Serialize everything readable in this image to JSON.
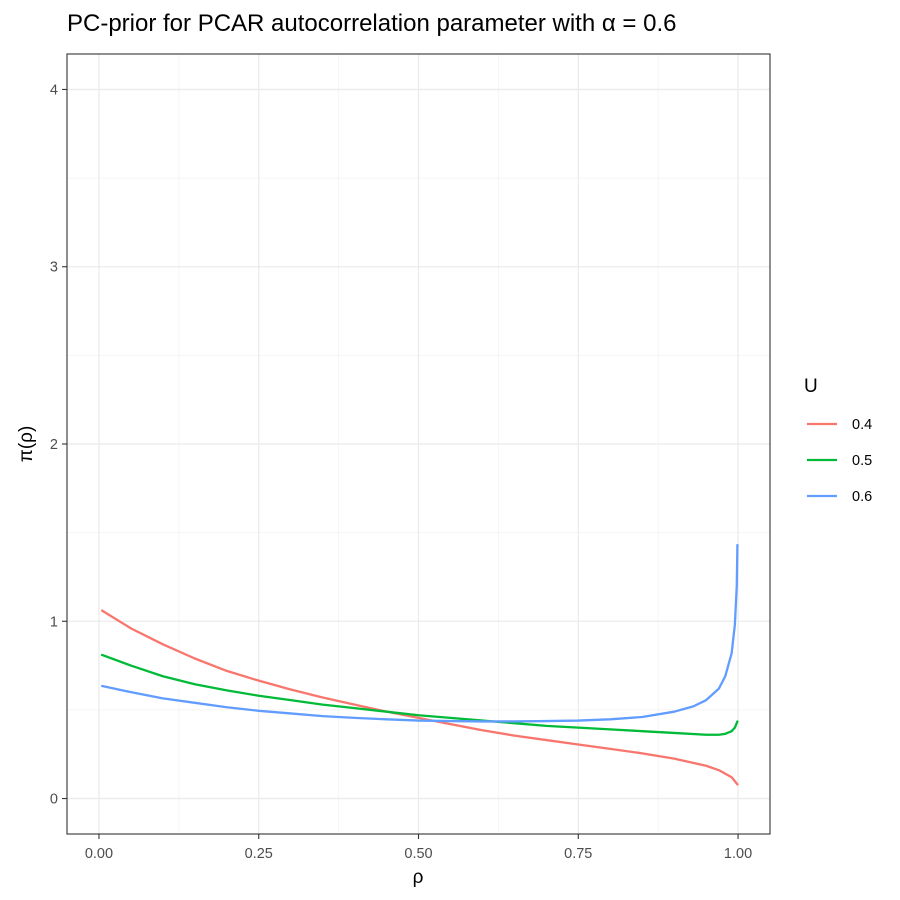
{
  "chart_data": {
    "type": "line",
    "title": "PC-prior for PCAR autocorrelation parameter with  α = 0.6",
    "xlabel": "ρ",
    "ylabel": "π(ρ)",
    "xlim": [
      -0.05,
      1.05
    ],
    "ylim": [
      -0.2,
      4.2
    ],
    "x_ticks": [
      0.0,
      0.25,
      0.5,
      0.75,
      1.0
    ],
    "x_tick_labels": [
      "0.00",
      "0.25",
      "0.50",
      "0.75",
      "1.00"
    ],
    "y_ticks": [
      0,
      1,
      2,
      3,
      4
    ],
    "y_tick_labels": [
      "0",
      "1",
      "2",
      "3",
      "4"
    ],
    "grid": true,
    "legend": {
      "title": "U",
      "position": "right"
    },
    "series": [
      {
        "name": "0.4",
        "color": "#F8766D",
        "x": [
          0.005,
          0.05,
          0.1,
          0.15,
          0.2,
          0.25,
          0.3,
          0.35,
          0.4,
          0.45,
          0.5,
          0.55,
          0.6,
          0.65,
          0.7,
          0.75,
          0.8,
          0.85,
          0.9,
          0.95,
          0.97,
          0.99,
          0.999
        ],
        "y": [
          1.06,
          0.96,
          0.87,
          0.79,
          0.72,
          0.665,
          0.615,
          0.57,
          0.53,
          0.49,
          0.455,
          0.42,
          0.385,
          0.355,
          0.33,
          0.305,
          0.28,
          0.255,
          0.225,
          0.185,
          0.16,
          0.12,
          0.08
        ]
      },
      {
        "name": "0.5",
        "color": "#00BA38",
        "x": [
          0.005,
          0.05,
          0.1,
          0.15,
          0.2,
          0.25,
          0.3,
          0.35,
          0.4,
          0.45,
          0.5,
          0.55,
          0.6,
          0.65,
          0.7,
          0.75,
          0.8,
          0.85,
          0.9,
          0.95,
          0.97,
          0.98,
          0.99,
          0.995,
          0.999
        ],
        "y": [
          0.81,
          0.75,
          0.69,
          0.645,
          0.61,
          0.58,
          0.555,
          0.53,
          0.51,
          0.49,
          0.47,
          0.455,
          0.44,
          0.425,
          0.41,
          0.4,
          0.39,
          0.38,
          0.37,
          0.36,
          0.36,
          0.365,
          0.38,
          0.4,
          0.435
        ]
      },
      {
        "name": "0.6",
        "color": "#619CFF",
        "x": [
          0.005,
          0.05,
          0.1,
          0.15,
          0.2,
          0.25,
          0.3,
          0.35,
          0.4,
          0.45,
          0.5,
          0.55,
          0.6,
          0.65,
          0.7,
          0.75,
          0.8,
          0.85,
          0.9,
          0.93,
          0.95,
          0.97,
          0.98,
          0.99,
          0.995,
          0.998,
          0.999
        ],
        "y": [
          0.635,
          0.6,
          0.565,
          0.54,
          0.515,
          0.495,
          0.48,
          0.465,
          0.455,
          0.447,
          0.44,
          0.437,
          0.435,
          0.435,
          0.437,
          0.44,
          0.447,
          0.46,
          0.49,
          0.52,
          0.555,
          0.62,
          0.69,
          0.82,
          0.98,
          1.2,
          1.43
        ]
      }
    ]
  }
}
